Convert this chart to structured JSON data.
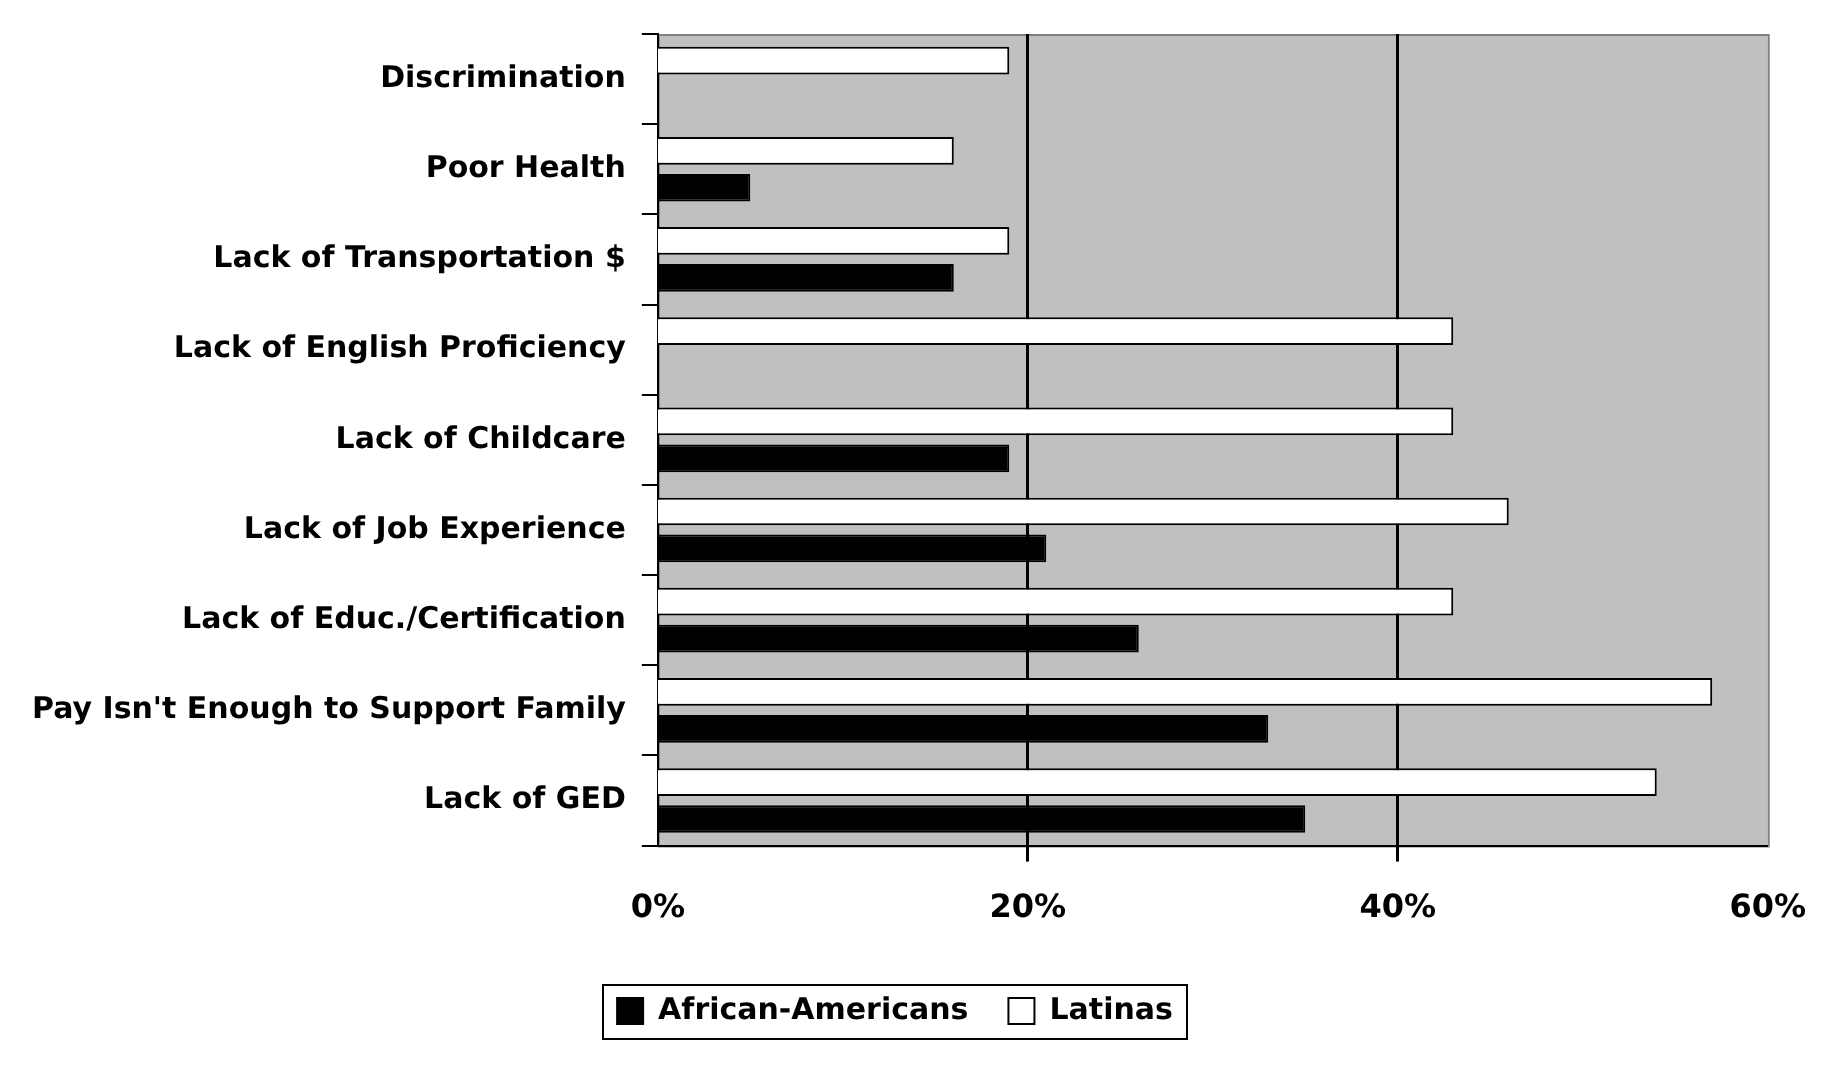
{
  "chart_data": {
    "type": "bar",
    "orientation": "horizontal",
    "categories": [
      "Discrimination",
      "Poor Health",
      "Lack of Transportation $",
      "Lack of English Proficiency",
      "Lack of Childcare",
      "Lack of Job Experience",
      "Lack of Educ./Certification",
      "Pay Isn't Enough to Support Family",
      "Lack of GED"
    ],
    "series": [
      {
        "name": "African-Americans",
        "color": "#000000",
        "values": [
          null,
          5,
          16,
          null,
          19,
          21,
          26,
          33,
          35
        ]
      },
      {
        "name": "Latinas",
        "color": "#ffffff",
        "values": [
          19,
          16,
          19,
          43,
          43,
          46,
          43,
          57,
          54
        ]
      }
    ],
    "xlim": [
      0,
      60
    ],
    "xticks": [
      {
        "value": 0,
        "label": "0%"
      },
      {
        "value": 20,
        "label": "20%"
      },
      {
        "value": 40,
        "label": "40%"
      },
      {
        "value": 60,
        "label": "60%"
      }
    ],
    "grid": "x",
    "legend": "bottom"
  }
}
